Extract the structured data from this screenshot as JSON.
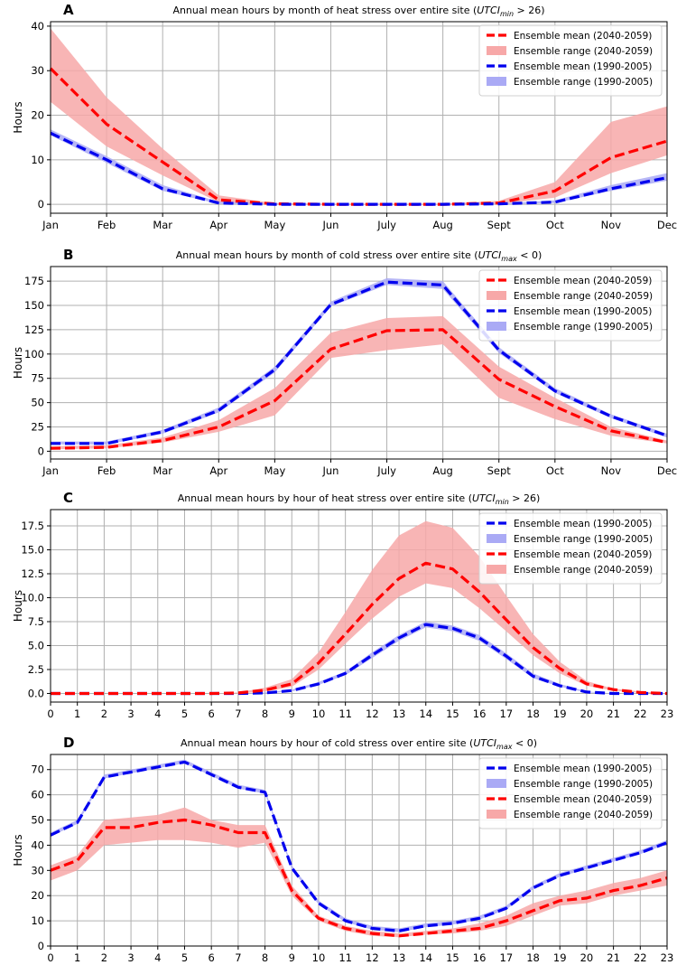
{
  "chart_data": [
    {
      "label": "A",
      "type": "line",
      "title": "Annual mean hours by month of heat stress over entire site (",
      "title_math": "UTCI",
      "title_sub": "min",
      "title_tail": " > 26)",
      "ylabel": "Hours",
      "xlabel": "",
      "categories": [
        "Jan",
        "Feb",
        "Mar",
        "Apr",
        "May",
        "Jun",
        "July",
        "Aug",
        "Sept",
        "Oct",
        "Nov",
        "Dec"
      ],
      "ylim": [
        -2,
        41
      ],
      "yticks": [
        0,
        10,
        20,
        30,
        40
      ],
      "grid": true,
      "legend_position": "top-right",
      "series": [
        {
          "name": "Ensemble mean (2040-2059)",
          "color": "#ff0000",
          "mean": [
            30.5,
            18,
            9.5,
            1,
            0.1,
            0,
            0,
            0,
            0.3,
            3,
            10.5,
            14.2
          ],
          "low": [
            23,
            13,
            6.5,
            0.5,
            0,
            0,
            0,
            0,
            0.1,
            1.5,
            7,
            11
          ],
          "high": [
            39.5,
            24,
            12.5,
            2,
            0.3,
            0.1,
            0.1,
            0.1,
            0.8,
            5,
            18.5,
            22
          ]
        },
        {
          "name": "Ensemble range (2040-2059)",
          "color": "#f7a8a8",
          "legend_only": true
        },
        {
          "name": "Ensemble mean (1990-2005)",
          "color": "#0000ee",
          "mean": [
            16,
            10,
            3.5,
            0.3,
            0,
            0,
            0,
            0,
            0.1,
            0.5,
            3.5,
            6
          ],
          "low": [
            15.5,
            9.3,
            3,
            0.1,
            0,
            0,
            0,
            0,
            0,
            0.3,
            3,
            5.3
          ],
          "high": [
            16.8,
            10.8,
            4.3,
            0.6,
            0.1,
            0,
            0,
            0,
            0.2,
            0.9,
            4.3,
            7
          ]
        },
        {
          "name": "Ensemble range (1990-2005)",
          "color": "#aaaaf5",
          "legend_only": true
        }
      ]
    },
    {
      "label": "B",
      "type": "line",
      "title": "Annual mean hours by month of cold stress over entire site (",
      "title_math": "UTCI",
      "title_sub": "max",
      "title_tail": " < 0)",
      "ylabel": "Hours",
      "xlabel": "",
      "categories": [
        "Jan",
        "Feb",
        "Mar",
        "Apr",
        "May",
        "Jun",
        "July",
        "Aug",
        "Sept",
        "Oct",
        "Nov",
        "Dec"
      ],
      "ylim": [
        -8,
        190
      ],
      "yticks": [
        0,
        25,
        50,
        75,
        100,
        125,
        150,
        175
      ],
      "grid": true,
      "legend_position": "top-right",
      "series": [
        {
          "name": "Ensemble mean (2040-2059)",
          "color": "#ff0000",
          "mean": [
            3,
            4,
            11,
            25,
            52,
            105,
            124,
            125,
            74,
            46,
            21,
            9
          ],
          "low": [
            2,
            3,
            9,
            20,
            37,
            96,
            104,
            110,
            55,
            33,
            16,
            8
          ],
          "high": [
            5,
            6,
            14,
            32,
            65,
            122,
            137,
            139,
            87,
            55,
            25,
            11
          ]
        },
        {
          "name": "Ensemble range (2040-2059)",
          "color": "#f7a8a8",
          "legend_only": true
        },
        {
          "name": "Ensemble mean (1990-2005)",
          "color": "#0000ee",
          "mean": [
            8,
            8,
            20,
            42,
            84,
            151,
            174,
            171,
            104,
            62,
            36,
            16
          ],
          "low": [
            7,
            7,
            18,
            40,
            81,
            149,
            171,
            167,
            101,
            60,
            34,
            14
          ],
          "high": [
            10,
            10,
            22,
            45,
            87,
            154,
            178,
            175,
            107,
            65,
            38,
            18
          ]
        },
        {
          "name": "Ensemble range (1990-2005)",
          "color": "#aaaaf5",
          "legend_only": true
        }
      ]
    },
    {
      "label": "C",
      "type": "line",
      "title": "Annual mean hours by hour of heat stress over entire site (",
      "title_math": "UTCI",
      "title_sub": "min",
      "title_tail": " > 26)",
      "ylabel": "Hours",
      "xlabel": "",
      "categories": [
        "0",
        "1",
        "2",
        "3",
        "4",
        "5",
        "6",
        "7",
        "8",
        "9",
        "10",
        "11",
        "12",
        "13",
        "14",
        "15",
        "16",
        "17",
        "18",
        "19",
        "20",
        "21",
        "22",
        "23"
      ],
      "ylim": [
        -0.9,
        19.2
      ],
      "yticks": [
        0.0,
        2.5,
        5.0,
        7.5,
        10.0,
        12.5,
        15.0,
        17.5
      ],
      "ytick_labels": [
        "0.0",
        "2.5",
        "5.0",
        "7.5",
        "10.0",
        "12.5",
        "15.0",
        "17.5"
      ],
      "grid": true,
      "legend_position": "top-right",
      "series": [
        {
          "name": "Ensemble mean (1990-2005)",
          "color": "#0000ee",
          "mean": [
            0,
            0,
            0,
            0,
            0,
            0,
            0,
            0,
            0.05,
            0.3,
            1,
            2.1,
            4,
            5.8,
            7.2,
            6.8,
            5.8,
            3.9,
            1.8,
            0.8,
            0.15,
            0,
            0,
            0
          ],
          "low": [
            0,
            0,
            0,
            0,
            0,
            0,
            0,
            0,
            0,
            0.2,
            0.9,
            1.9,
            3.7,
            5.5,
            6.9,
            6.5,
            5.5,
            3.6,
            1.6,
            0.7,
            0.1,
            0,
            0,
            0
          ],
          "high": [
            0,
            0,
            0,
            0,
            0,
            0,
            0,
            0,
            0.1,
            0.4,
            1.2,
            2.3,
            4.3,
            6.1,
            7.5,
            7.1,
            6.1,
            4.2,
            2.1,
            1,
            0.2,
            0,
            0,
            0
          ]
        },
        {
          "name": "Ensemble range (1990-2005)",
          "color": "#aaaaf5",
          "legend_only": true
        },
        {
          "name": "Ensemble mean (2040-2059)",
          "color": "#ff0000",
          "mean": [
            0,
            0,
            0,
            0,
            0,
            0,
            0,
            0.05,
            0.35,
            1,
            3.2,
            6.2,
            9.3,
            12,
            13.6,
            13,
            10.6,
            7.7,
            4.8,
            2.6,
            1,
            0.4,
            0.1,
            0
          ],
          "low": [
            0,
            0,
            0,
            0,
            0,
            0,
            0,
            0,
            0.2,
            0.7,
            2.5,
            5.2,
            7.8,
            10.1,
            11.5,
            11,
            8.9,
            6.5,
            4,
            2.1,
            0.8,
            0.3,
            0.05,
            0
          ],
          "high": [
            0,
            0,
            0,
            0,
            0,
            0,
            0,
            0.1,
            0.6,
            1.5,
            4.3,
            8.5,
            12.9,
            16.5,
            18,
            17.3,
            14.3,
            10.2,
            6.2,
            3.3,
            1.3,
            0.5,
            0.2,
            0
          ]
        },
        {
          "name": "Ensemble range (2040-2059)",
          "color": "#f7a8a8",
          "legend_only": true
        }
      ]
    },
    {
      "label": "D",
      "type": "line",
      "title": "Annual mean hours by hour of cold stress over entire site (",
      "title_math": "UTCI",
      "title_sub": "max",
      "title_tail": " < 0)",
      "ylabel": "Hours",
      "xlabel": "",
      "categories": [
        "0",
        "1",
        "2",
        "3",
        "4",
        "5",
        "6",
        "7",
        "8",
        "9",
        "10",
        "11",
        "12",
        "13",
        "14",
        "15",
        "16",
        "17",
        "18",
        "19",
        "20",
        "21",
        "22",
        "23"
      ],
      "ylim": [
        0,
        76
      ],
      "yticks": [
        0,
        10,
        20,
        30,
        40,
        50,
        60,
        70
      ],
      "grid": true,
      "legend_position": "top-right",
      "series": [
        {
          "name": "Ensemble mean (1990-2005)",
          "color": "#0000ee",
          "mean": [
            44,
            49,
            67,
            69,
            71,
            73,
            68,
            63,
            61,
            31,
            17,
            10,
            7,
            6,
            8,
            9,
            11,
            15,
            23,
            28,
            31,
            34,
            37,
            41
          ],
          "low": [
            43.5,
            48.5,
            66.5,
            68.5,
            70.5,
            72.5,
            67.5,
            62.5,
            60.5,
            30.5,
            16.5,
            9.5,
            6.5,
            5.5,
            7.5,
            8.5,
            10.5,
            14.5,
            22.5,
            27.5,
            30.5,
            33.5,
            36.5,
            40.5
          ],
          "high": [
            45,
            50,
            68,
            70,
            72,
            74,
            69,
            64,
            62,
            32,
            18,
            11,
            8,
            7,
            9,
            10,
            12,
            16,
            24,
            29,
            32,
            35,
            38,
            42
          ]
        },
        {
          "name": "Ensemble range (1990-2005)",
          "color": "#aaaaf5",
          "legend_only": true
        },
        {
          "name": "Ensemble mean (2040-2059)",
          "color": "#ff0000",
          "mean": [
            30,
            34,
            47,
            47,
            49,
            50,
            48,
            45,
            45,
            22,
            11,
            7,
            5,
            4,
            5,
            6,
            7,
            10,
            14,
            18,
            19,
            22,
            24,
            27
          ],
          "low": [
            26,
            30,
            40,
            41,
            42,
            42,
            41,
            39,
            41,
            20,
            10,
            6,
            4,
            3.5,
            4.5,
            5,
            6,
            8,
            12,
            16,
            17,
            20,
            22,
            24
          ],
          "high": [
            32,
            36,
            50,
            51,
            52,
            55,
            50,
            48,
            48,
            24,
            12,
            8,
            6,
            5,
            6,
            7,
            9,
            12,
            17,
            20,
            22,
            25,
            27,
            30
          ]
        },
        {
          "name": "Ensemble range (2040-2059)",
          "color": "#f7a8a8",
          "legend_only": true
        }
      ]
    }
  ]
}
